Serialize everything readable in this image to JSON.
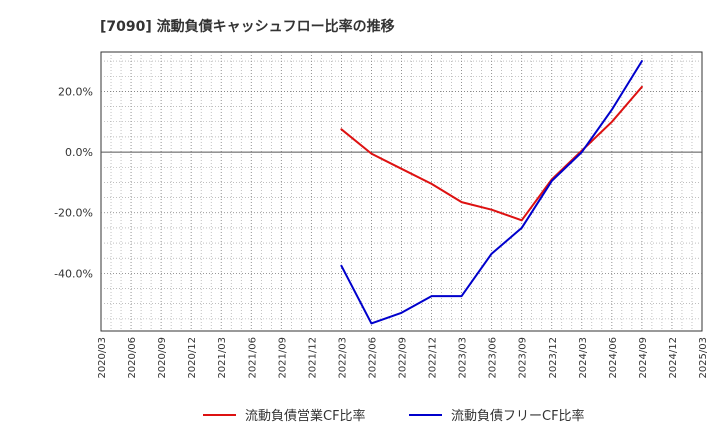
{
  "chart_data": {
    "type": "line",
    "title": "[7090]  流動負債キャッシュフロー比率の推移",
    "x": [
      "2020/03",
      "2020/06",
      "2020/09",
      "2020/12",
      "2021/03",
      "2021/06",
      "2021/09",
      "2021/12",
      "2022/03",
      "2022/06",
      "2022/09",
      "2022/12",
      "2023/03",
      "2023/06",
      "2023/09",
      "2023/12",
      "2024/03",
      "2024/06",
      "2024/09",
      "2024/12",
      "2025/03"
    ],
    "y_ticks": [
      "20.0%",
      "0.0%",
      "-20.0%",
      "-40.0%"
    ],
    "y_tick_values": [
      20,
      0,
      -20,
      -40
    ],
    "ylim": [
      -59,
      33
    ],
    "grid": true,
    "legend_position": "bottom",
    "series": [
      {
        "name": "流動負債営業CF比率",
        "color": "#dd1111",
        "values": [
          null,
          null,
          null,
          null,
          null,
          null,
          null,
          null,
          7.5,
          -0.5,
          -5.5,
          -10.5,
          -16.5,
          -19.0,
          -22.5,
          -9.0,
          0.5,
          10.0,
          21.5,
          null,
          null
        ]
      },
      {
        "name": "流動負債フリーCF比率",
        "color": "#0000cc",
        "values": [
          null,
          null,
          null,
          null,
          null,
          null,
          null,
          null,
          -37.5,
          -56.5,
          -53.0,
          -47.5,
          -47.5,
          -33.5,
          -25.0,
          -9.5,
          0.0,
          14.0,
          30.0,
          null,
          null
        ]
      }
    ]
  }
}
